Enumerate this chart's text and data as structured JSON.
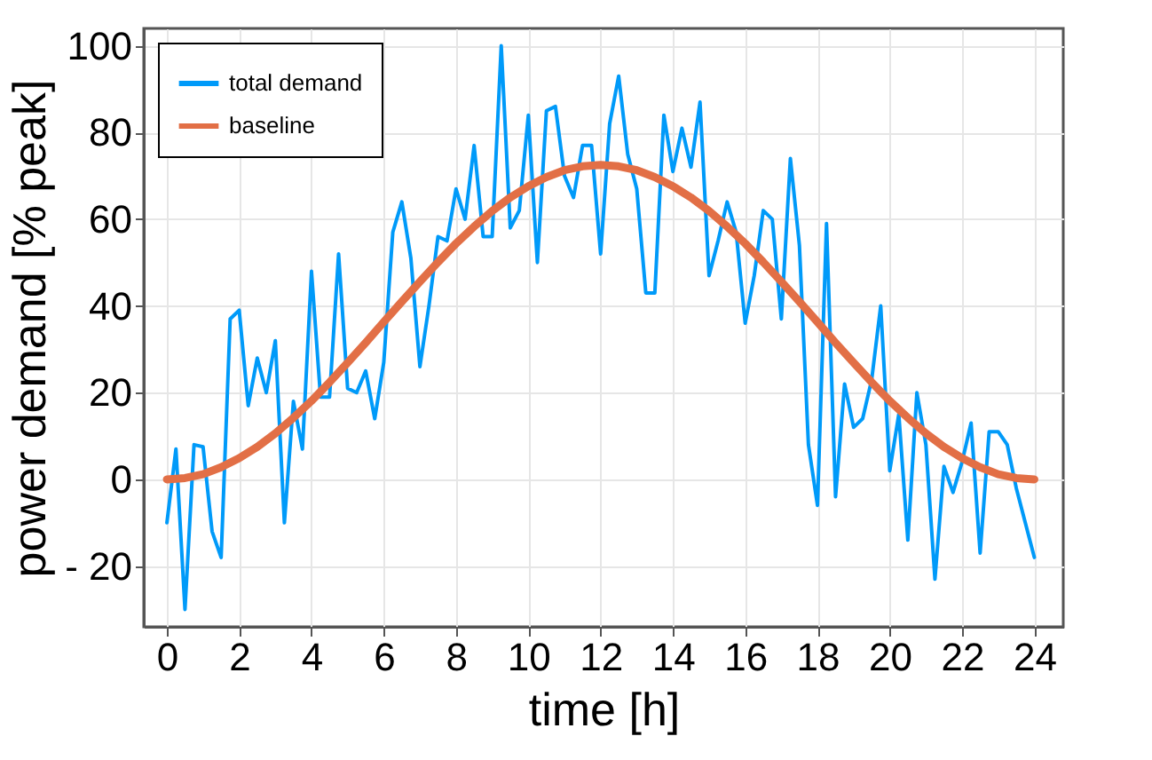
{
  "chart_data": {
    "type": "line",
    "xlabel": "time [h]",
    "ylabel": "power demand [% peak]",
    "xlim": [
      -0.64,
      24.8
    ],
    "ylim": [
      -34,
      104
    ],
    "xticks": [
      0,
      2,
      4,
      6,
      8,
      10,
      12,
      14,
      16,
      18,
      20,
      22,
      24
    ],
    "yticks": [
      {
        "value": -20,
        "label": "- 20"
      },
      0,
      20,
      40,
      60,
      80,
      100
    ],
    "grid": true,
    "legend": "top left",
    "series": [
      {
        "name": "total demand",
        "color": "#009af9",
        "x": [
          0,
          0.25,
          0.5,
          0.75,
          1,
          1.25,
          1.5,
          1.75,
          2,
          2.25,
          2.5,
          2.75,
          3,
          3.25,
          3.5,
          3.75,
          4,
          4.25,
          4.5,
          4.75,
          5,
          5.25,
          5.5,
          5.75,
          6,
          6.25,
          6.5,
          6.75,
          7,
          7.25,
          7.5,
          7.75,
          8,
          8.25,
          8.5,
          8.75,
          9,
          9.25,
          9.5,
          9.75,
          10,
          10.25,
          10.5,
          10.75,
          11,
          11.25,
          11.5,
          11.75,
          12,
          12.25,
          12.5,
          12.75,
          13,
          13.25,
          13.5,
          13.75,
          14,
          14.25,
          14.5,
          14.75,
          15,
          15.25,
          15.5,
          15.75,
          16,
          16.25,
          16.5,
          16.75,
          17,
          17.25,
          17.5,
          17.75,
          18,
          18.25,
          18.5,
          18.75,
          19,
          19.25,
          19.5,
          19.75,
          20,
          20.25,
          20.5,
          20.75,
          21,
          21.25,
          21.5,
          21.75,
          22,
          22.25,
          22.5,
          22.75,
          23,
          23.25,
          23.5,
          23.75,
          24
        ],
        "values": [
          -10,
          7,
          -30,
          8,
          7.5,
          -12,
          -18,
          37,
          39,
          17,
          28,
          20,
          32,
          -10,
          18,
          7,
          48,
          19,
          19,
          52,
          21,
          20,
          25,
          14,
          27,
          57,
          64,
          51,
          26,
          40,
          56,
          55,
          67,
          60,
          77,
          56,
          56,
          100,
          58,
          62,
          84,
          50,
          85,
          86,
          70,
          65,
          77,
          77,
          52,
          82,
          93,
          75,
          67,
          43,
          43,
          84,
          71,
          81,
          72,
          87,
          47,
          55,
          64,
          57,
          36,
          47,
          62,
          60,
          37,
          74,
          54,
          8,
          -6,
          59,
          -4,
          22,
          12,
          14,
          23,
          40,
          2,
          15,
          -14,
          20,
          8,
          -23,
          3,
          -3,
          4,
          13,
          -17,
          11,
          11,
          8,
          -2,
          -10,
          -18
        ]
      },
      {
        "name": "baseline",
        "color": "#e26f46",
        "x": [
          0,
          0.5,
          1,
          1.5,
          2,
          2.5,
          3,
          3.5,
          4,
          4.5,
          5,
          5.5,
          6,
          6.5,
          7,
          7.5,
          8,
          8.5,
          9,
          9.5,
          10,
          10.5,
          11,
          11.5,
          12,
          12.5,
          13,
          13.5,
          14,
          14.5,
          15,
          15.5,
          16,
          16.5,
          17,
          17.5,
          18,
          18.5,
          19,
          19.5,
          20,
          20.5,
          21,
          21.5,
          22,
          22.5,
          23,
          23.5,
          24
        ],
        "values": [
          0,
          0.3,
          1.2,
          2.8,
          4.9,
          7.5,
          10.6,
          14.2,
          18.1,
          22.4,
          26.9,
          31.5,
          36.3,
          41,
          45.6,
          50.1,
          54.4,
          58.3,
          61.9,
          65,
          67.6,
          69.7,
          71.3,
          72.2,
          72.5,
          72.2,
          71.3,
          69.7,
          67.6,
          65,
          61.9,
          58.3,
          54.4,
          50.1,
          45.6,
          41,
          36.3,
          31.5,
          26.9,
          22.4,
          18.1,
          14.2,
          10.6,
          7.5,
          4.9,
          2.8,
          1.2,
          0.3,
          0
        ]
      }
    ]
  }
}
